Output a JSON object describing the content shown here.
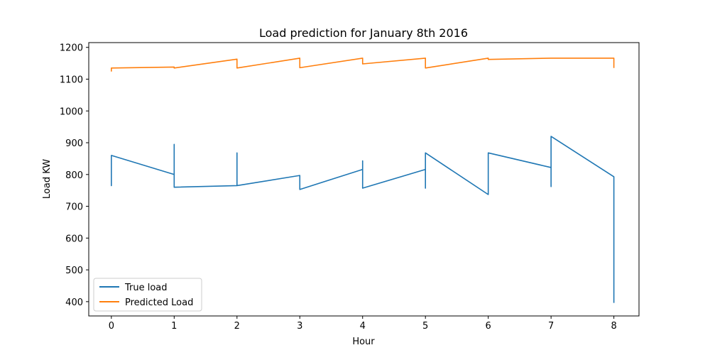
{
  "chart_data": {
    "type": "line",
    "title": "Load prediction for January 8th 2016",
    "xlabel": "Hour",
    "ylabel": "Load KW",
    "xlim": [
      -0.36,
      8.4
    ],
    "ylim": [
      355,
      1215
    ],
    "xticks": [
      0,
      1,
      2,
      3,
      4,
      5,
      6,
      7,
      8
    ],
    "yticks": [
      400,
      500,
      600,
      700,
      800,
      900,
      1000,
      1100,
      1200
    ],
    "grid": false,
    "legend_position": "lower-left",
    "series": [
      {
        "name": "True load",
        "color": "#1f77b4",
        "points": [
          [
            0,
            800
          ],
          [
            0,
            765
          ],
          [
            0,
            860
          ],
          [
            1,
            800
          ],
          [
            1,
            895
          ],
          [
            1,
            760
          ],
          [
            2,
            765
          ],
          [
            2,
            868
          ],
          [
            2,
            765
          ],
          [
            3,
            797
          ],
          [
            3,
            753
          ],
          [
            4,
            816
          ],
          [
            4,
            843
          ],
          [
            4,
            757
          ],
          [
            5,
            816
          ],
          [
            5,
            757
          ],
          [
            5,
            868
          ],
          [
            6,
            737
          ],
          [
            6,
            793
          ],
          [
            6,
            868
          ],
          [
            7,
            822
          ],
          [
            7,
            762
          ],
          [
            7,
            920
          ],
          [
            8,
            793
          ],
          [
            8,
            396
          ]
        ]
      },
      {
        "name": "Predicted Load",
        "color": "#ff7f0e",
        "points": [
          [
            0,
            1124
          ],
          [
            0,
            1135
          ],
          [
            1,
            1138
          ],
          [
            1,
            1135
          ],
          [
            2,
            1163
          ],
          [
            2,
            1135
          ],
          [
            3,
            1166
          ],
          [
            3,
            1136
          ],
          [
            4,
            1166
          ],
          [
            4,
            1148
          ],
          [
            5,
            1166
          ],
          [
            5,
            1135
          ],
          [
            6,
            1166
          ],
          [
            6,
            1162
          ],
          [
            7,
            1166
          ],
          [
            7,
            1166
          ],
          [
            8,
            1166
          ],
          [
            8,
            1135
          ]
        ]
      }
    ]
  }
}
